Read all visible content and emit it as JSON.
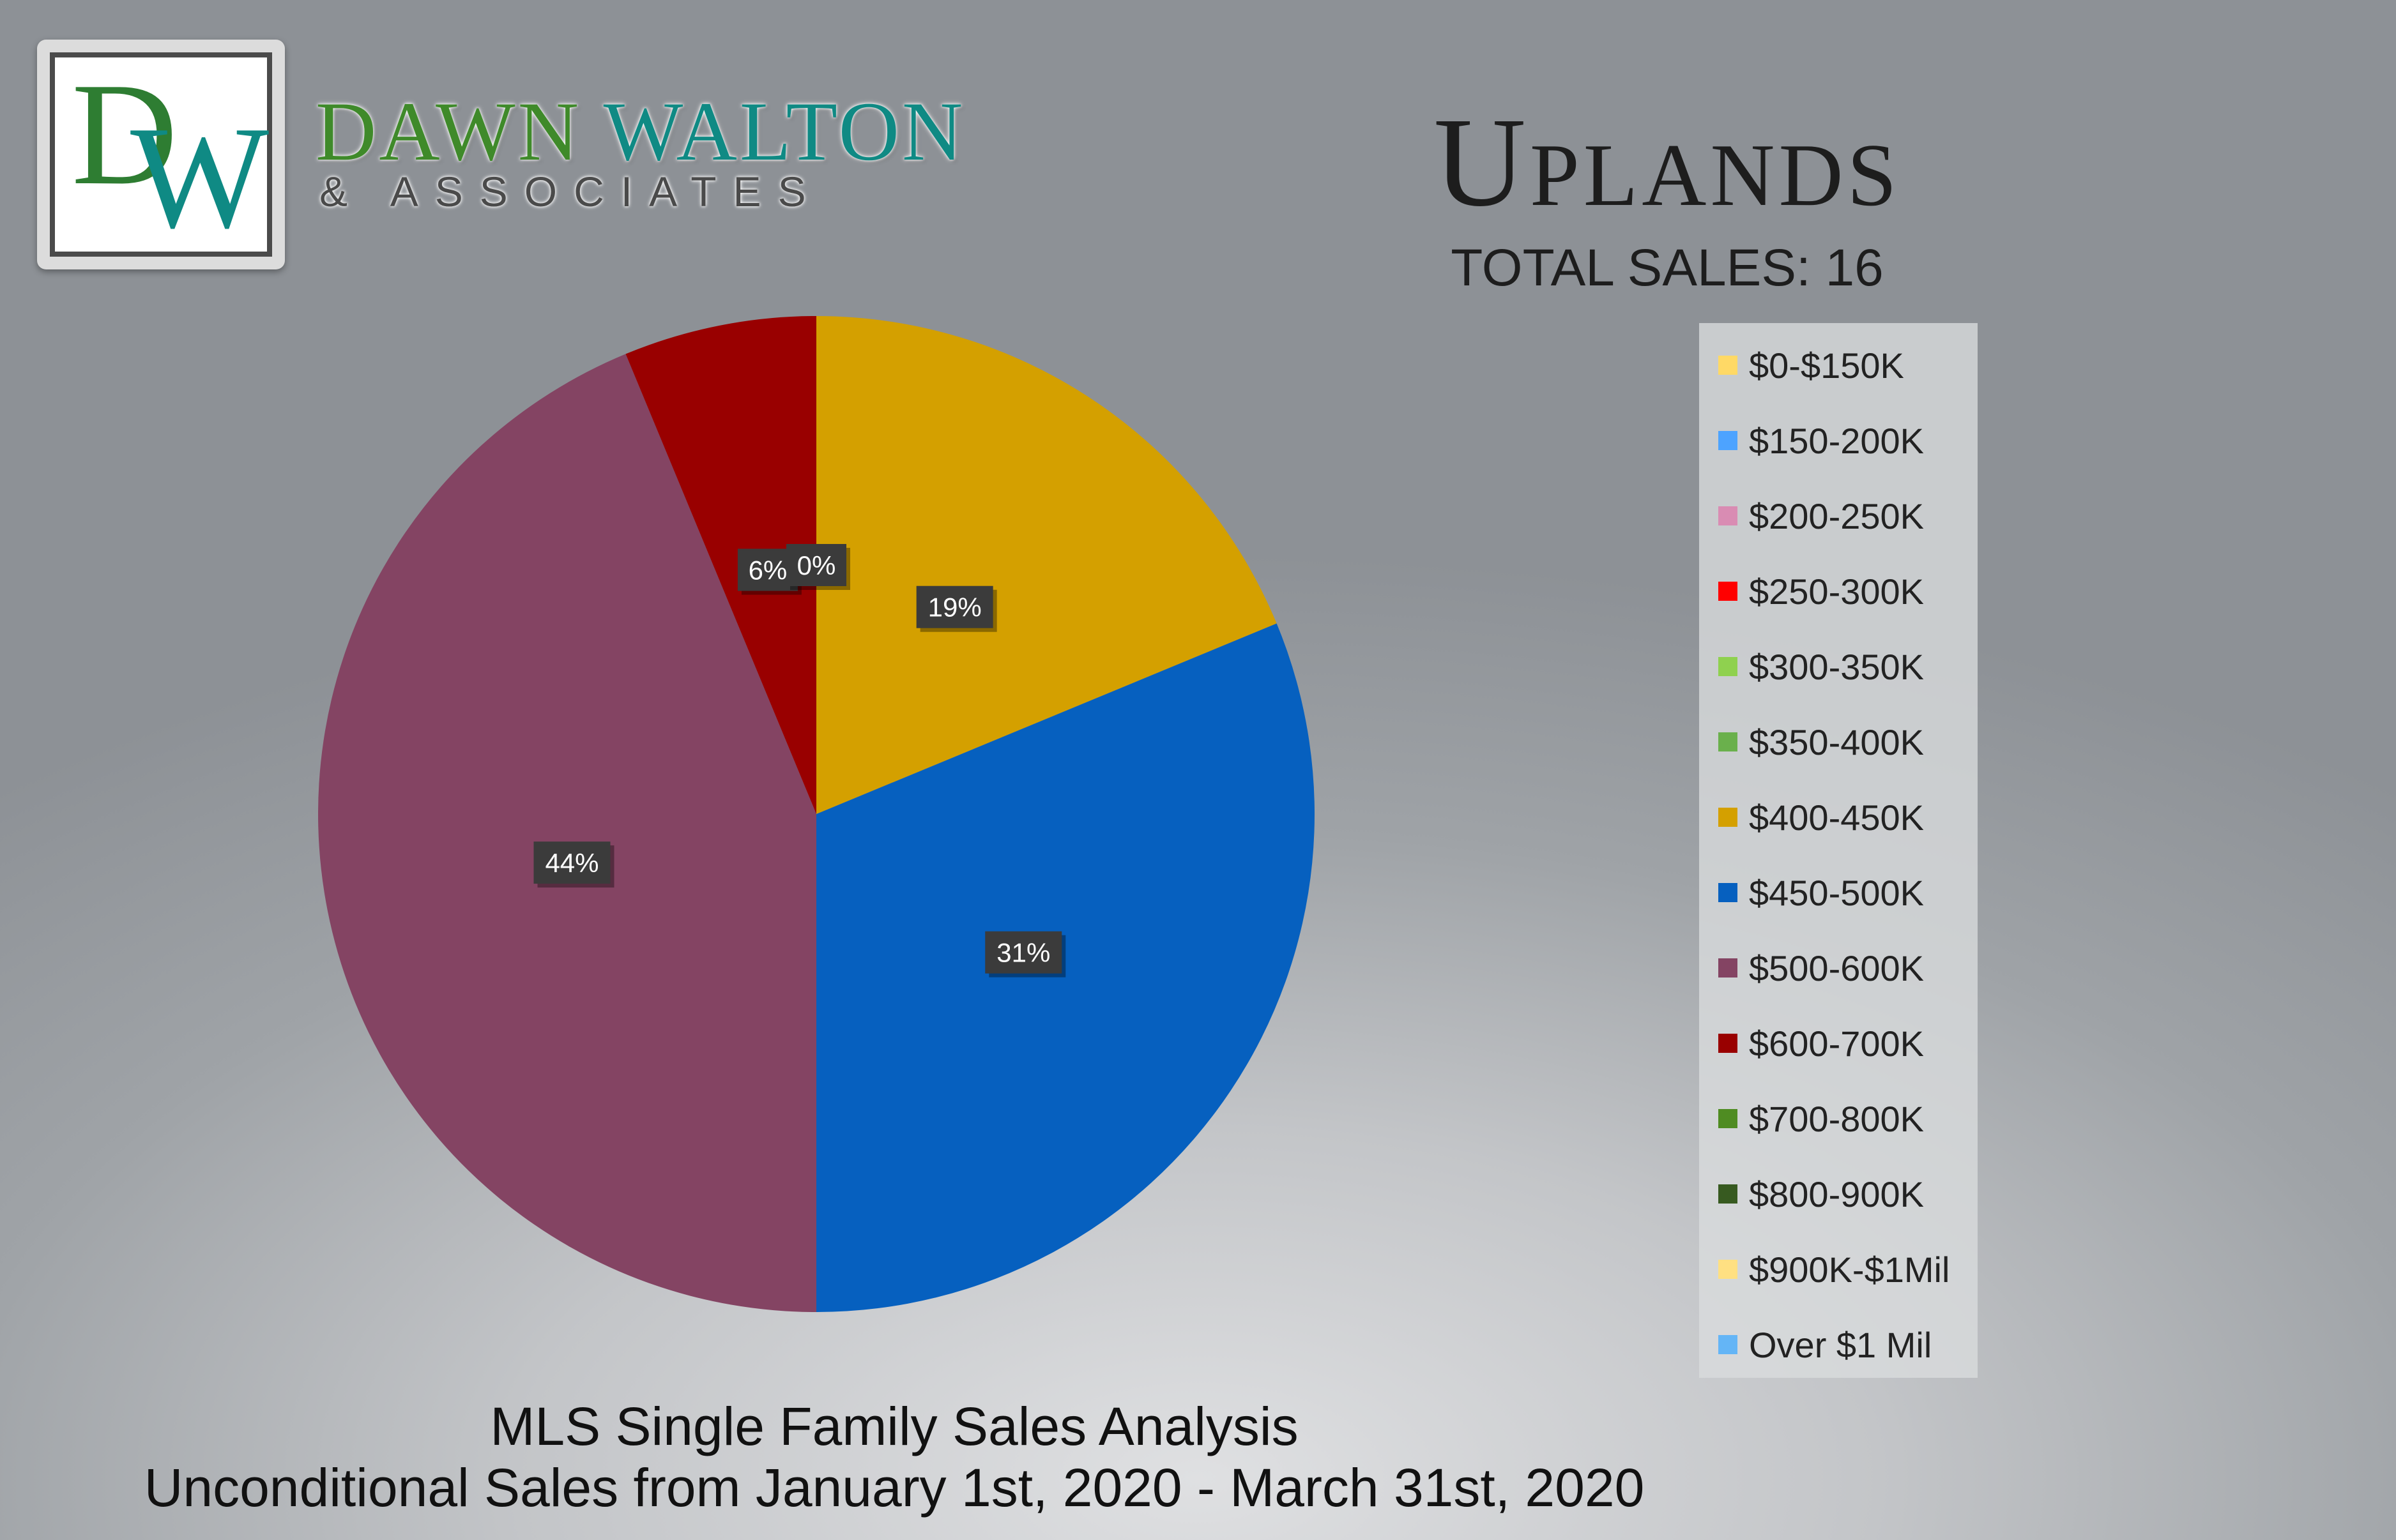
{
  "brand": {
    "logo_letters": "DW",
    "name_part1": "DAWN",
    "name_part2": "WALTON",
    "subtitle": "& ASSOCIATES"
  },
  "header": {
    "title": "Uplands",
    "total_sales": "TOTAL SALES: 16"
  },
  "footer": {
    "line1": "MLS Single Family Sales Analysis",
    "line2": "Unconditional Sales from January 1st, 2020 - March 31st, 2020"
  },
  "chart_data": {
    "type": "pie",
    "title": "Uplands",
    "legend_position": "right",
    "categories": [
      "$0-$150K",
      "$150-200K",
      "$200-250K",
      "$250-300K",
      "$300-350K",
      "$350-400K",
      "$400-450K",
      "$450-500K",
      "$500-600K",
      "$600-700K",
      "$700-800K",
      "$800-900K",
      "$900K-$1Mil",
      "Over $1 Mil"
    ],
    "colors": [
      "#ffd966",
      "#4da3ff",
      "#d98cb3",
      "#ff0000",
      "#8fd14f",
      "#6ab04c",
      "#d4a000",
      "#0660bf",
      "#844463",
      "#990000",
      "#4f8c22",
      "#375a20",
      "#ffe082",
      "#64b5f6"
    ],
    "values": [
      0,
      0,
      0,
      0,
      0,
      0,
      3,
      5,
      7,
      1,
      0,
      0,
      0,
      0
    ],
    "percent_labels": [
      "0%",
      "19%",
      "31%",
      "44%",
      "6%"
    ]
  }
}
